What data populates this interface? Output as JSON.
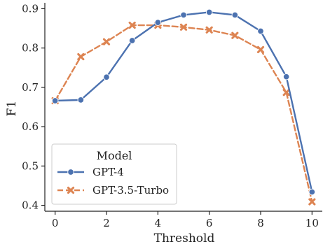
{
  "chart_data": {
    "type": "line",
    "xlabel": "Threshold",
    "ylabel": "F1",
    "x": [
      0,
      1,
      2,
      3,
      4,
      5,
      6,
      7,
      8,
      9,
      10
    ],
    "xlim": [
      -0.4,
      10.4
    ],
    "ylim": [
      0.385,
      0.915
    ],
    "xticks": [
      0,
      2,
      4,
      6,
      8,
      10
    ],
    "yticks": [
      0.4,
      0.5,
      0.6,
      0.7,
      0.8,
      0.9
    ],
    "ytick_labels": [
      "0.4",
      "0.5",
      "0.6",
      "0.7",
      "0.8",
      "0.9"
    ],
    "grid": false,
    "legend": {
      "title": "Model",
      "placement": "lower-left"
    },
    "series": [
      {
        "name": "GPT-4",
        "color": "#4c72b0",
        "marker": "circle",
        "line_style": "solid",
        "values": [
          0.666,
          0.668,
          0.726,
          0.819,
          0.865,
          0.884,
          0.891,
          0.884,
          0.843,
          0.727,
          0.434
        ]
      },
      {
        "name": "GPT-3.5-Turbo",
        "color": "#dd8452",
        "marker": "x",
        "line_style": "dashed",
        "values": [
          0.666,
          0.778,
          0.816,
          0.858,
          0.858,
          0.853,
          0.846,
          0.832,
          0.796,
          0.687,
          0.409
        ]
      }
    ]
  }
}
